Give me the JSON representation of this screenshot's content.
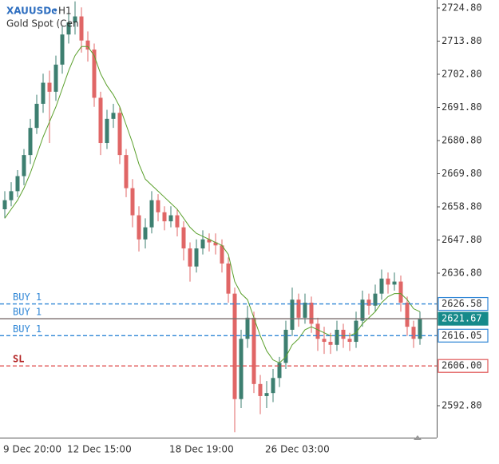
{
  "chart_data": {
    "type": "candlestick",
    "symbol": "XAUUSDc",
    "timeframe": "H1",
    "description": "Gold Spot (Cen",
    "categories": [
      "9 Dec 20:00",
      null,
      null,
      null,
      null,
      null,
      null,
      null,
      null,
      null,
      "12 Dec 15:00",
      null,
      null,
      null,
      null,
      null,
      null,
      null,
      null,
      null,
      null,
      null,
      null,
      null,
      null,
      null,
      "18 Dec 19:00",
      null,
      null,
      null,
      null,
      null,
      null,
      null,
      null,
      null,
      null,
      null,
      null,
      null,
      null,
      "26 Dec 03:00",
      null,
      null,
      null,
      null,
      null,
      null,
      null,
      null,
      null,
      null,
      null,
      null,
      null,
      null,
      null,
      null,
      null,
      null,
      null,
      null,
      null,
      null,
      null,
      null
    ],
    "open": [
      2658,
      2661,
      2664,
      2669,
      2676,
      2685,
      2693,
      2700,
      2697,
      2706,
      2716,
      2720,
      2722,
      2714,
      2711,
      2695,
      2680,
      2688,
      2690,
      2676,
      2665,
      2656,
      2648,
      2652,
      2661,
      2657,
      2654,
      2656,
      2652,
      2645,
      2639,
      2645,
      2648,
      2647,
      2646,
      2640,
      2630,
      2595,
      2615,
      2622,
      2600,
      2596,
      2597,
      2602,
      2607,
      2618,
      2628,
      2622,
      2627,
      2620,
      2615,
      2614,
      2613,
      2618,
      2615,
      2614,
      2621,
      2628,
      2626,
      2630,
      2635,
      2633,
      2634,
      2627,
      2619,
      2615
    ],
    "high": [
      2664,
      2667,
      2671,
      2678,
      2688,
      2696,
      2703,
      2704,
      2709,
      2719,
      2724,
      2727,
      2725,
      2717,
      2713,
      2697,
      2691,
      2693,
      2692,
      2678,
      2668,
      2659,
      2655,
      2664,
      2663,
      2659,
      2659,
      2658,
      2654,
      2647,
      2648,
      2651,
      2650,
      2650,
      2648,
      2642,
      2632,
      2618,
      2626,
      2624,
      2603,
      2601,
      2605,
      2609,
      2621,
      2632,
      2630,
      2630,
      2629,
      2622,
      2619,
      2617,
      2621,
      2620,
      2617,
      2624,
      2631,
      2630,
      2633,
      2638,
      2637,
      2637,
      2636,
      2629,
      2621,
      2624
    ],
    "low": [
      2655,
      2659,
      2662,
      2666,
      2673,
      2683,
      2690,
      2680,
      2694,
      2703,
      2713,
      2716,
      2710,
      2707,
      2692,
      2676,
      2678,
      2685,
      2673,
      2662,
      2652,
      2644,
      2645,
      2650,
      2654,
      2651,
      2652,
      2649,
      2641,
      2634,
      2637,
      2643,
      2644,
      2643,
      2637,
      2627,
      2584,
      2592,
      2612,
      2597,
      2590,
      2592,
      2594,
      2599,
      2605,
      2616,
      2619,
      2620,
      2617,
      2611,
      2610,
      2610,
      2611,
      2612,
      2611,
      2612,
      2619,
      2623,
      2624,
      2628,
      2630,
      2631,
      2624,
      2616,
      2612,
      2613
    ],
    "close": [
      2661,
      2664,
      2669,
      2676,
      2685,
      2693,
      2700,
      2697,
      2706,
      2716,
      2720,
      2722,
      2714,
      2711,
      2695,
      2680,
      2688,
      2690,
      2676,
      2665,
      2656,
      2648,
      2652,
      2661,
      2657,
      2654,
      2656,
      2652,
      2645,
      2639,
      2645,
      2648,
      2647,
      2646,
      2640,
      2630,
      2595,
      2615,
      2622,
      2600,
      2596,
      2597,
      2602,
      2607,
      2618,
      2628,
      2622,
      2627,
      2620,
      2615,
      2614,
      2613,
      2618,
      2615,
      2614,
      2621,
      2628,
      2626,
      2630,
      2635,
      2633,
      2634,
      2627,
      2619,
      2615,
      2621.67
    ],
    "up_color": "#3d7f70",
    "down_color": "#e06666",
    "ma": {
      "color": "#5aa02c",
      "values": [
        2655,
        2658,
        2661,
        2665,
        2670,
        2676,
        2682,
        2687,
        2692,
        2698,
        2704,
        2709,
        2712,
        2712,
        2709,
        2703,
        2699,
        2696,
        2692,
        2686,
        2680,
        2673,
        2668,
        2666,
        2664,
        2662,
        2660,
        2658,
        2655,
        2652,
        2650,
        2649,
        2648,
        2647,
        2646,
        2643,
        2634,
        2630,
        2628,
        2622,
        2616,
        2611,
        2608,
        2607,
        2609,
        2613,
        2615,
        2618,
        2619,
        2618,
        2617,
        2616,
        2616,
        2616,
        2616,
        2617,
        2620,
        2622,
        2624,
        2627,
        2629,
        2630,
        2630,
        2628,
        2625,
        2624
      ]
    },
    "ylim": [
      2582.2,
      2727.45
    ],
    "yticks": [
      {
        "value": 2724.8,
        "label": "2724.80"
      },
      {
        "value": 2713.8,
        "label": "2713.80"
      },
      {
        "value": 2702.8,
        "label": "2702.80"
      },
      {
        "value": 2691.8,
        "label": "2691.80"
      },
      {
        "value": 2680.8,
        "label": "2680.80"
      },
      {
        "value": 2669.8,
        "label": "2669.80"
      },
      {
        "value": 2658.8,
        "label": "2658.80"
      },
      {
        "value": 2647.8,
        "label": "2647.80"
      },
      {
        "value": 2636.8,
        "label": "2636.80"
      },
      {
        "value": 2592.8,
        "label": "2592.80"
      }
    ],
    "orders": [
      {
        "name": "BUY 1",
        "price": 2626.58,
        "color": "#2f86d6",
        "dashed": true
      },
      {
        "name": "BUY 1",
        "price": 2621.67,
        "color": "#7a6e6e",
        "dashed": false,
        "label_fill": "#168a8a"
      },
      {
        "name": "BUY 1",
        "price": 2616.05,
        "color": "#2f86d6",
        "dashed": true
      },
      {
        "name": "SL",
        "price": 2606,
        "price_label": "2606.00",
        "color": "#e05555",
        "dashed": true
      }
    ]
  }
}
